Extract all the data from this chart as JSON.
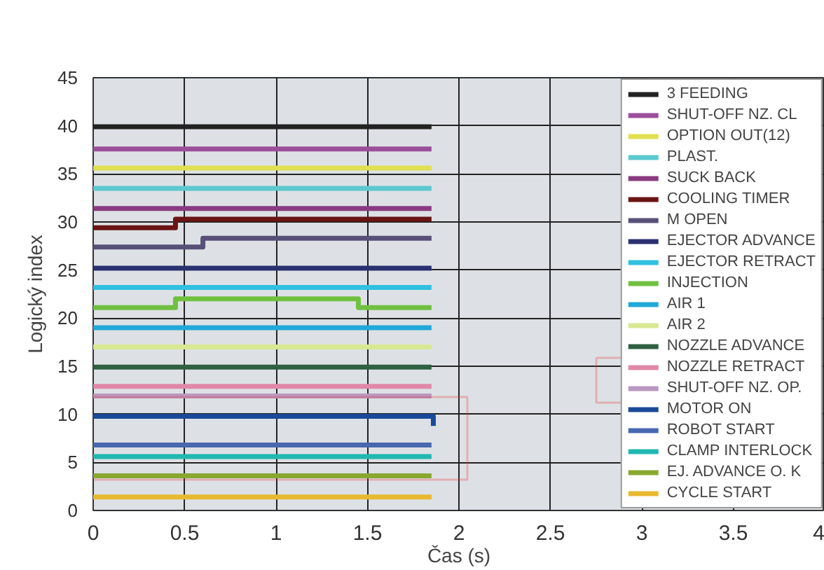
{
  "chart_data": {
    "type": "step",
    "xlabel": "Čas (s)",
    "ylabel": "Logický index",
    "xlim": [
      0,
      4
    ],
    "ylim": [
      0,
      45
    ],
    "xticks": [
      0,
      0.5,
      1,
      1.5,
      2,
      2.5,
      3,
      3.5,
      4
    ],
    "yticks": [
      0,
      5,
      10,
      15,
      20,
      25,
      30,
      35,
      40,
      45
    ],
    "grid": true,
    "legend": "top right",
    "series": [
      {
        "name": "3 FEEDING",
        "color": "#222222",
        "x": [
          0,
          1.85
        ],
        "values": [
          39.9,
          39.9
        ]
      },
      {
        "name": "SHUT-OFF NZ. CL",
        "color": "#9b4f9b",
        "x": [
          0,
          1.85
        ],
        "values": [
          37.6,
          37.6
        ]
      },
      {
        "name": "OPTION OUT(12)",
        "color": "#e0e050",
        "x": [
          0,
          1.85
        ],
        "values": [
          35.6,
          35.6
        ]
      },
      {
        "name": "PLAST.",
        "color": "#5cc8d0",
        "x": [
          0,
          1.85
        ],
        "values": [
          33.5,
          33.5
        ]
      },
      {
        "name": "SUCK BACK",
        "color": "#8a3a80",
        "x": [
          0,
          1.85
        ],
        "values": [
          31.4,
          31.4
        ]
      },
      {
        "name": "COOLING TIMER",
        "color": "#6b1414",
        "x": [
          0,
          0.45,
          1.85
        ],
        "values": [
          29.4,
          30.3,
          30.3
        ]
      },
      {
        "name": "M OPEN",
        "color": "#585078",
        "x": [
          0,
          0.6,
          1.85
        ],
        "values": [
          27.4,
          28.3,
          28.3
        ]
      },
      {
        "name": "EJECTOR ADVANCE",
        "color": "#2a3070",
        "x": [
          0,
          1.85
        ],
        "values": [
          25.2,
          25.2
        ]
      },
      {
        "name": "EJECTOR RETRACT",
        "color": "#30c0e0",
        "x": [
          0,
          1.85
        ],
        "values": [
          23.2,
          23.2
        ]
      },
      {
        "name": "INJECTION",
        "color": "#70c040",
        "x": [
          0,
          0.45,
          1.45,
          1.85
        ],
        "values": [
          21.1,
          22.0,
          21.1,
          21.1
        ]
      },
      {
        "name": "AIR 1",
        "color": "#20a8d8",
        "x": [
          0,
          1.85
        ],
        "values": [
          19.0,
          19.0
        ]
      },
      {
        "name": "AIR 2",
        "color": "#d8e890",
        "x": [
          0,
          1.85
        ],
        "values": [
          17.0,
          17.0
        ]
      },
      {
        "name": "NOZZLE ADVANCE",
        "color": "#2f6040",
        "x": [
          0,
          1.85
        ],
        "values": [
          14.9,
          14.9
        ]
      },
      {
        "name": "NOZZLE RETRACT",
        "color": "#e088a8",
        "x": [
          0,
          1.85
        ],
        "values": [
          12.9,
          12.9
        ]
      },
      {
        "name": "SHUT-OFF NZ. OP.",
        "color": "#b898c0",
        "x": [
          0,
          1.85
        ],
        "values": [
          11.9,
          11.9
        ]
      },
      {
        "name": "MOTOR ON",
        "color": "#1a4a98",
        "x": [
          0,
          1.86,
          1.86
        ],
        "values": [
          9.8,
          9.8,
          8.8
        ]
      },
      {
        "name": "ROBOT START",
        "color": "#4868b0",
        "x": [
          0,
          1.85
        ],
        "values": [
          6.8,
          6.8
        ]
      },
      {
        "name": "CLAMP INTERLOCK",
        "color": "#20b8b0",
        "x": [
          0,
          1.85
        ],
        "values": [
          5.6,
          5.6
        ]
      },
      {
        "name": "EJ. ADVANCE O. K",
        "color": "#88a830",
        "x": [
          0,
          1.85
        ],
        "values": [
          3.6,
          3.6
        ]
      },
      {
        "name": "CYCLE START",
        "color": "#e8b830",
        "x": [
          0,
          1.85
        ],
        "values": [
          1.4,
          1.4
        ]
      }
    ]
  }
}
